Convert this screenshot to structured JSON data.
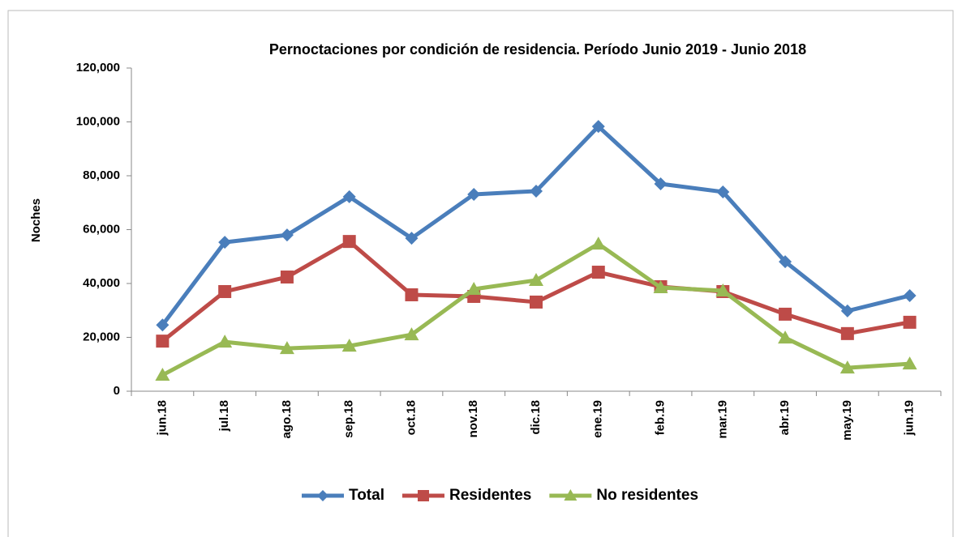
{
  "chart_data": {
    "type": "line",
    "title": "Pernoctaciones por condición de residencia. Período Junio 2019 - Junio 2018",
    "y_label": "Noches",
    "categories": [
      "jun.18",
      "jul.18",
      "ago.18",
      "sep.18",
      "oct.18",
      "nov.18",
      "dic.18",
      "ene.19",
      "feb.19",
      "mar.19",
      "abr.19",
      "may.19",
      "jun.19"
    ],
    "series": [
      {
        "name": "Total",
        "color": "#4a7ebb",
        "marker": "diamond",
        "values": [
          24600,
          55300,
          58000,
          72200,
          56800,
          73100,
          74300,
          98300,
          77000,
          74000,
          48100,
          29800,
          35500
        ]
      },
      {
        "name": "Residentes",
        "color": "#be4b48",
        "marker": "square",
        "values": [
          18600,
          37000,
          42400,
          55600,
          35800,
          35200,
          33100,
          44200,
          38800,
          37000,
          28600,
          21400,
          25600
        ]
      },
      {
        "name": "No residentes",
        "color": "#98b954",
        "marker": "triangle",
        "values": [
          6000,
          18300,
          15900,
          16800,
          21000,
          37900,
          41200,
          54700,
          38500,
          37300,
          19800,
          8700,
          10200
        ]
      }
    ],
    "ylim": [
      0,
      120000
    ],
    "yticks": [
      0,
      {
        "value": 20000,
        "label": "20,000"
      },
      {
        "value": 40000,
        "label": "40,000"
      },
      {
        "value": 60000,
        "label": "60,000"
      },
      {
        "value": 80000,
        "label": "80,000"
      },
      {
        "value": 100000,
        "label": "100,000"
      },
      {
        "value": 120000,
        "label": "120,000"
      }
    ],
    "legend": "bottom"
  }
}
